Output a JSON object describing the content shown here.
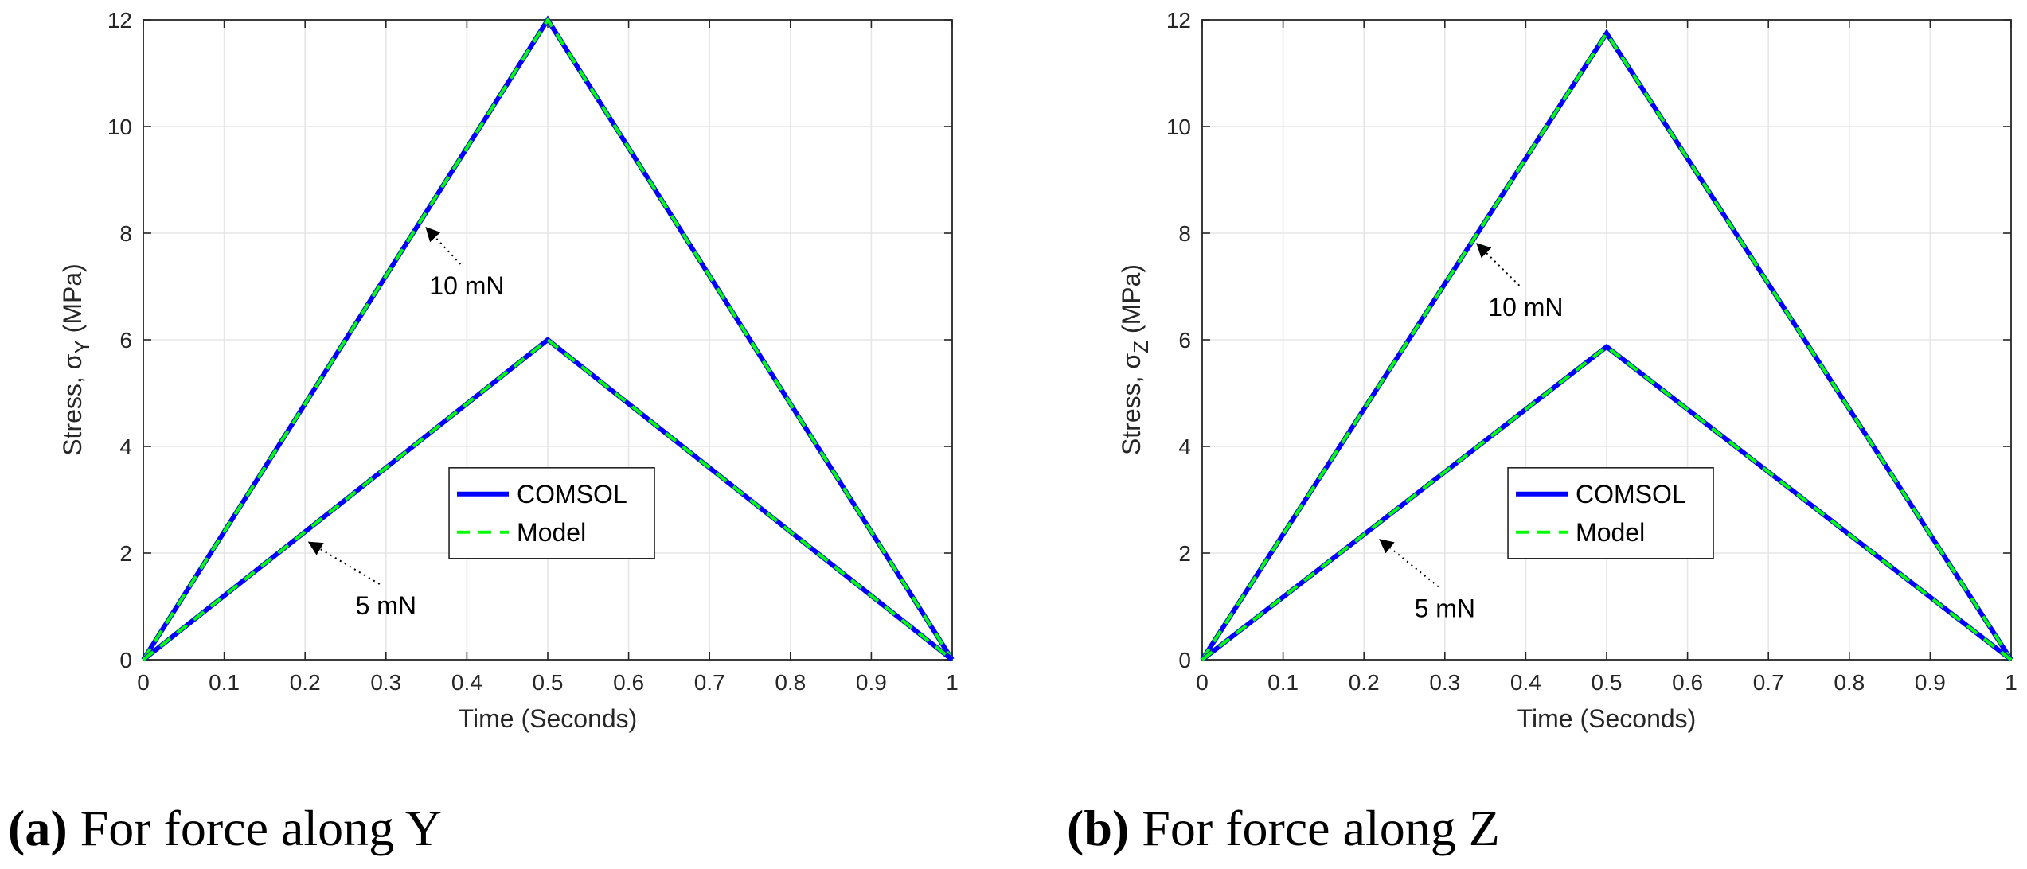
{
  "colors": {
    "comsol": "#0000ff",
    "model": "#00ff00",
    "grid": "#e6e6e6",
    "axis": "#262626",
    "annotation_arrow": "#000000"
  },
  "chart_data": [
    {
      "type": "line",
      "caption_tag": "(a)",
      "caption_text": "For force along Y",
      "xlabel": "Time (Seconds)",
      "ylabel_prefix": "Stress, σ",
      "ylabel_sub": "Y",
      "ylabel_suffix": " (MPa)",
      "xlim": [
        0,
        1
      ],
      "ylim": [
        0,
        12
      ],
      "xticks": [
        0,
        0.1,
        0.2,
        0.3,
        0.4,
        0.5,
        0.6,
        0.7,
        0.8,
        0.9,
        1
      ],
      "xtick_labels": [
        "0",
        "0.1",
        "0.2",
        "0.3",
        "0.4",
        "0.5",
        "0.6",
        "0.7",
        "0.8",
        "0.9",
        "1"
      ],
      "yticks": [
        0,
        2,
        4,
        6,
        8,
        10,
        12
      ],
      "ytick_labels": [
        "0",
        "2",
        "4",
        "6",
        "8",
        "10",
        "12"
      ],
      "grid": true,
      "legend_entries": [
        "COMSOL",
        "Model"
      ],
      "series": [
        {
          "group": "10 mN",
          "name": "COMSOL",
          "x": [
            0,
            0.5,
            1
          ],
          "y": [
            0,
            12,
            0
          ]
        },
        {
          "group": "10 mN",
          "name": "Model",
          "x": [
            0,
            0.5,
            1
          ],
          "y": [
            0,
            12,
            0
          ]
        },
        {
          "group": "5 mN",
          "name": "COMSOL",
          "x": [
            0,
            0.5,
            1
          ],
          "y": [
            0,
            6,
            0
          ]
        },
        {
          "group": "5 mN",
          "name": "Model",
          "x": [
            0,
            0.5,
            1
          ],
          "y": [
            0,
            6,
            0
          ]
        }
      ],
      "annotations": [
        {
          "text": "10 mN",
          "point": [
            0.35,
            8.1
          ],
          "label_at": [
            0.4,
            7.0
          ]
        },
        {
          "text": "5 mN",
          "point": [
            0.205,
            2.2
          ],
          "label_at": [
            0.3,
            1.0
          ]
        }
      ]
    },
    {
      "type": "line",
      "caption_tag": "(b)",
      "caption_text": "For force along Z",
      "xlabel": "Time (Seconds)",
      "ylabel_prefix": "Stress, σ",
      "ylabel_sub": "Z",
      "ylabel_suffix": " (MPa)",
      "xlim": [
        0,
        1
      ],
      "ylim": [
        0,
        12
      ],
      "xticks": [
        0,
        0.1,
        0.2,
        0.3,
        0.4,
        0.5,
        0.6,
        0.7,
        0.8,
        0.9,
        1
      ],
      "xtick_labels": [
        "0",
        "0.1",
        "0.2",
        "0.3",
        "0.4",
        "0.5",
        "0.6",
        "0.7",
        "0.8",
        "0.9",
        "1"
      ],
      "yticks": [
        0,
        2,
        4,
        6,
        8,
        10,
        12
      ],
      "ytick_labels": [
        "0",
        "2",
        "4",
        "6",
        "8",
        "10",
        "12"
      ],
      "grid": true,
      "legend_entries": [
        "COMSOL",
        "Model"
      ],
      "series": [
        {
          "group": "10 mN",
          "name": "COMSOL",
          "x": [
            0,
            0.5,
            1
          ],
          "y": [
            0,
            11.75,
            0
          ]
        },
        {
          "group": "10 mN",
          "name": "Model",
          "x": [
            0,
            0.5,
            1
          ],
          "y": [
            0,
            11.75,
            0
          ]
        },
        {
          "group": "5 mN",
          "name": "COMSOL",
          "x": [
            0,
            0.5,
            1
          ],
          "y": [
            0,
            5.87,
            0
          ]
        },
        {
          "group": "5 mN",
          "name": "Model",
          "x": [
            0,
            0.5,
            1
          ],
          "y": [
            0,
            5.87,
            0
          ]
        }
      ],
      "annotations": [
        {
          "text": "10 mN",
          "point": [
            0.34,
            7.8
          ],
          "label_at": [
            0.4,
            6.6
          ]
        },
        {
          "text": "5 mN",
          "point": [
            0.22,
            2.25
          ],
          "label_at": [
            0.3,
            0.95
          ]
        }
      ]
    }
  ]
}
